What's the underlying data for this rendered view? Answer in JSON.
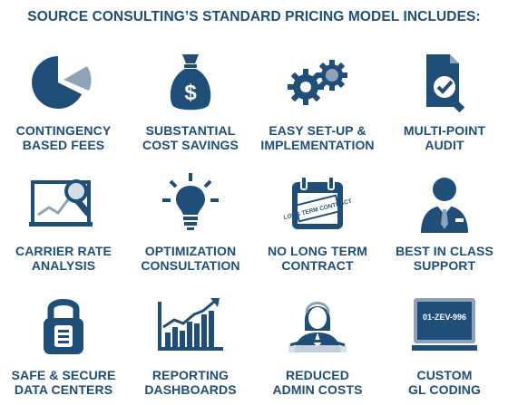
{
  "title": "SOURCE CONSULTING’S STANDARD PRICING MODEL INCLUDES:",
  "colors": {
    "navy": "#1f4e79",
    "steel": "#8fa3b8",
    "light": "#d4dde6"
  },
  "items": [
    {
      "icon": "pie-chart-icon",
      "line1": "CONTINGENCY",
      "line2": "BASED FEES"
    },
    {
      "icon": "money-bag-icon",
      "line1": "SUBSTANTIAL",
      "line2": "COST SAVINGS"
    },
    {
      "icon": "gears-icon",
      "line1": "EASY SET-UP &",
      "line2": "IMPLEMENTATION"
    },
    {
      "icon": "audit-document-icon",
      "line1": "MULTI-POINT",
      "line2": "AUDIT"
    },
    {
      "icon": "chart-magnifier-icon",
      "line1": "CARRIER RATE",
      "line2": "ANALYSIS"
    },
    {
      "icon": "lightbulb-icon",
      "line1": "OPTIMIZATION",
      "line2": "CONSULTATION"
    },
    {
      "icon": "calendar-contract-icon",
      "line1": "NO LONG TERM",
      "line2": "CONTRACT",
      "stamp": "LONG TERM CONTRACT"
    },
    {
      "icon": "businessman-icon",
      "line1": "BEST IN CLASS",
      "line2": "SUPPORT"
    },
    {
      "icon": "padlock-icon",
      "line1": "SAFE & SECURE",
      "line2": "DATA CENTERS"
    },
    {
      "icon": "bar-chart-icon",
      "line1": "REPORTING",
      "line2": "DASHBOARDS"
    },
    {
      "icon": "support-agent-icon",
      "line1": "REDUCED",
      "line2": "ADMIN COSTS"
    },
    {
      "icon": "monitor-icon",
      "line1": "CUSTOM",
      "line2": "GL CODING",
      "screen": "01-ZEV-996"
    }
  ]
}
